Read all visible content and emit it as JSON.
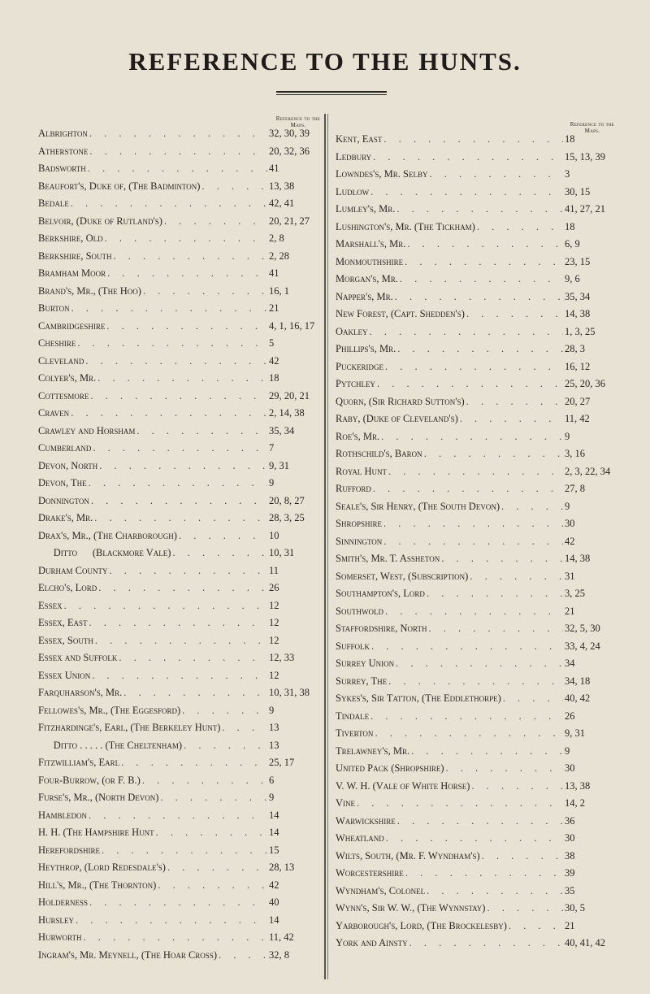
{
  "title": "REFERENCE TO THE HUNTS.",
  "column_header": "Reference to the Maps.",
  "left_column": [
    {
      "name": "Albrighton",
      "ref": "32, 30, 39"
    },
    {
      "name": "Atherstone",
      "ref": "20, 32, 36"
    },
    {
      "name": "Badsworth",
      "ref": "41"
    },
    {
      "name": "Beaufort's, Duke of, (The Badminton)",
      "ref": "13, 38"
    },
    {
      "name": "Bedale",
      "ref": "42, 41"
    },
    {
      "name": "Belvoir, (Duke of Rutland's)",
      "ref": "20, 21, 27"
    },
    {
      "name": "Berkshire, Old",
      "ref": "2, 8"
    },
    {
      "name": "Berkshire, South",
      "ref": "2, 28"
    },
    {
      "name": "Bramham Moor",
      "ref": "41"
    },
    {
      "name": "Brand's, Mr., (The Hoo)",
      "ref": "16, 1"
    },
    {
      "name": "Burton",
      "ref": "21"
    },
    {
      "name": "Cambridgeshire",
      "ref": "4, 1, 16, 17"
    },
    {
      "name": "Cheshire",
      "ref": "5"
    },
    {
      "name": "Cleveland",
      "ref": "42"
    },
    {
      "name": "Colyer's, Mr.",
      "ref": "18"
    },
    {
      "name": "Cottesmore",
      "ref": "29, 20, 21"
    },
    {
      "name": "Craven",
      "ref": "2, 14, 38"
    },
    {
      "name": "Crawley and Horsham",
      "ref": "35, 34"
    },
    {
      "name": "Cumberland",
      "ref": "7"
    },
    {
      "name": "Devon, North",
      "ref": "9, 31"
    },
    {
      "name": "Devon, The",
      "ref": "9"
    },
    {
      "name": "Donnington",
      "ref": "20, 8, 27"
    },
    {
      "name": "Drake's, Mr.",
      "ref": "28, 3, 25"
    },
    {
      "name": "Drax's, Mr., (The Charborough)",
      "ref": "10"
    },
    {
      "name": "      Ditto      (Blackmore Vale)",
      "ref": "10, 31"
    },
    {
      "name": "Durham County",
      "ref": "11"
    },
    {
      "name": "Elcho's, Lord",
      "ref": "26"
    },
    {
      "name": "Essex",
      "ref": "12"
    },
    {
      "name": "Essex, East",
      "ref": "12"
    },
    {
      "name": "Essex, South",
      "ref": "12"
    },
    {
      "name": "Essex and Suffolk",
      "ref": "12, 33"
    },
    {
      "name": "Essex Union",
      "ref": "12"
    },
    {
      "name": "Farquharson's, Mr.",
      "ref": "10, 31, 38"
    },
    {
      "name": "Fellowes's, Mr., (The Eggesford)",
      "ref": "9"
    },
    {
      "name": "Fitzhardinge's, Earl, (The Berkeley Hunt)",
      "ref": "13"
    },
    {
      "name": "      Ditto . . . . . (The Cheltenham)",
      "ref": "13"
    },
    {
      "name": "Fitzwilliam's, Earl",
      "ref": "25, 17"
    },
    {
      "name": "Four-Burrow, (or F. B.)",
      "ref": "6"
    },
    {
      "name": "Furse's, Mr., (North Devon)",
      "ref": "9"
    },
    {
      "name": "Hambledon",
      "ref": "14"
    },
    {
      "name": "H. H. (The Hampshire Hunt",
      "ref": "14"
    },
    {
      "name": "Herefordshire",
      "ref": "15"
    },
    {
      "name": "Heythrop, (Lord Redesdale's)",
      "ref": "28, 13"
    },
    {
      "name": "Hill's, Mr., (The Thornton)",
      "ref": "42"
    },
    {
      "name": "Holderness",
      "ref": "40"
    },
    {
      "name": "Hursley",
      "ref": "14"
    },
    {
      "name": "Hurworth",
      "ref": "11, 42"
    },
    {
      "name": "Ingram's, Mr. Meynell, (The Hoar Cross)",
      "ref": "32, 8"
    }
  ],
  "right_column": [
    {
      "name": "Kent, East",
      "ref": "18"
    },
    {
      "name": "Ledbury",
      "ref": "15, 13, 39"
    },
    {
      "name": "Lowndes's, Mr. Selby",
      "ref": "3"
    },
    {
      "name": "Ludlow",
      "ref": "30, 15"
    },
    {
      "name": "Lumley's, Mr.",
      "ref": "41, 27, 21"
    },
    {
      "name": "Lushington's, Mr. (The Tickham)",
      "ref": "18"
    },
    {
      "name": "Marshall's, Mr.",
      "ref": "6, 9"
    },
    {
      "name": "Monmouthshire",
      "ref": "23, 15"
    },
    {
      "name": "Morgan's, Mr.",
      "ref": "9, 6"
    },
    {
      "name": "Napper's, Mr.",
      "ref": "35, 34"
    },
    {
      "name": "New Forest, (Capt. Shedden's)",
      "ref": "14, 38"
    },
    {
      "name": "Oakley",
      "ref": "1, 3, 25"
    },
    {
      "name": "Phillips's, Mr.",
      "ref": "28, 3"
    },
    {
      "name": "Puckeridge",
      "ref": "16, 12"
    },
    {
      "name": "Pytchley",
      "ref": "25, 20, 36"
    },
    {
      "name": "Quorn, (Sir Richard Sutton's)",
      "ref": "20, 27"
    },
    {
      "name": "Raby, (Duke of Cleveland's)",
      "ref": "11, 42"
    },
    {
      "name": "Roe's, Mr.",
      "ref": "9"
    },
    {
      "name": "Rothschild's, Baron",
      "ref": "3, 16"
    },
    {
      "name": "Royal Hunt",
      "ref": "2, 3, 22, 34"
    },
    {
      "name": "Rufford",
      "ref": "27, 8"
    },
    {
      "name": "Seale's, Sir Henry, (The South Devon)",
      "ref": "9"
    },
    {
      "name": "Shropshire",
      "ref": "30"
    },
    {
      "name": "Sinnington",
      "ref": "42"
    },
    {
      "name": "Smith's, Mr. T. Assheton",
      "ref": "14, 38"
    },
    {
      "name": "Somerset, West, (Subscription)",
      "ref": "31"
    },
    {
      "name": "Southampton's, Lord",
      "ref": "3, 25"
    },
    {
      "name": "Southwold",
      "ref": "21"
    },
    {
      "name": "Staffordshire, North",
      "ref": "32, 5, 30"
    },
    {
      "name": "Suffolk",
      "ref": "33, 4, 24"
    },
    {
      "name": "Surrey Union",
      "ref": "34"
    },
    {
      "name": "Surrey, The",
      "ref": "34, 18"
    },
    {
      "name": "Sykes's, Sir Tatton, (The Eddlethorpe)",
      "ref": "40, 42"
    },
    {
      "name": "Tindale",
      "ref": "26"
    },
    {
      "name": "Tiverton",
      "ref": "9, 31"
    },
    {
      "name": "Trelawney's, Mr.",
      "ref": "9"
    },
    {
      "name": "United Pack (Shropshire)",
      "ref": "30"
    },
    {
      "name": "V. W. H. (Vale of White Horse)",
      "ref": "13, 38"
    },
    {
      "name": "Vine",
      "ref": "14, 2"
    },
    {
      "name": "Warwickshire",
      "ref": "36"
    },
    {
      "name": "Wheatland",
      "ref": "30"
    },
    {
      "name": "Wilts, South, (Mr. F. Wyndham's)",
      "ref": "38"
    },
    {
      "name": "Worcestershire",
      "ref": "39"
    },
    {
      "name": "Wyndham's, Colonel",
      "ref": "35"
    },
    {
      "name": "Wynn's, Sir W. W., (The Wynnstay)",
      "ref": "30, 5"
    },
    {
      "name": "Yarborough's, Lord, (The Brockelesby)",
      "ref": "21"
    },
    {
      "name": "York and Ainsty",
      "ref": "40, 41, 42"
    }
  ]
}
